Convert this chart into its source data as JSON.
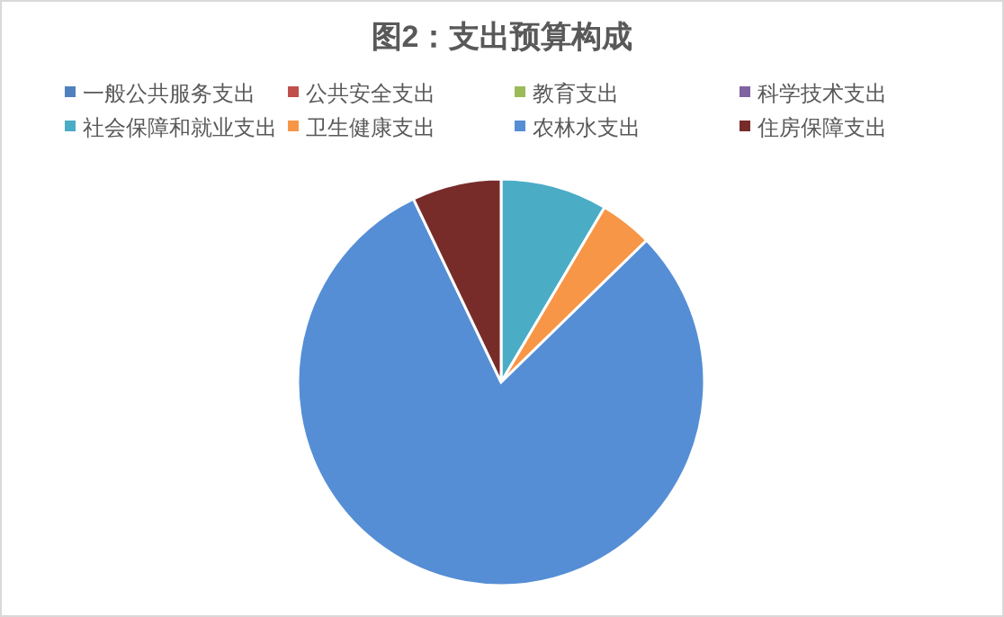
{
  "chart_data": {
    "type": "pie",
    "title": "图2：支出预算构成",
    "categories": [
      "一般公共服务支出",
      "公共安全支出",
      "教育支出",
      "科学技术支出",
      "社会保障和就业支出",
      "卫生健康支出",
      "农林水支出",
      "住房保障支出"
    ],
    "values": [
      0,
      0,
      0,
      0,
      8.5,
      4.2,
      80.2,
      7.1
    ],
    "colors": [
      "#4f81bd",
      "#c0504d",
      "#9bbb59",
      "#8064a2",
      "#4bacc6",
      "#f79646",
      "#558ed5",
      "#772c2a"
    ],
    "legend": "top"
  }
}
